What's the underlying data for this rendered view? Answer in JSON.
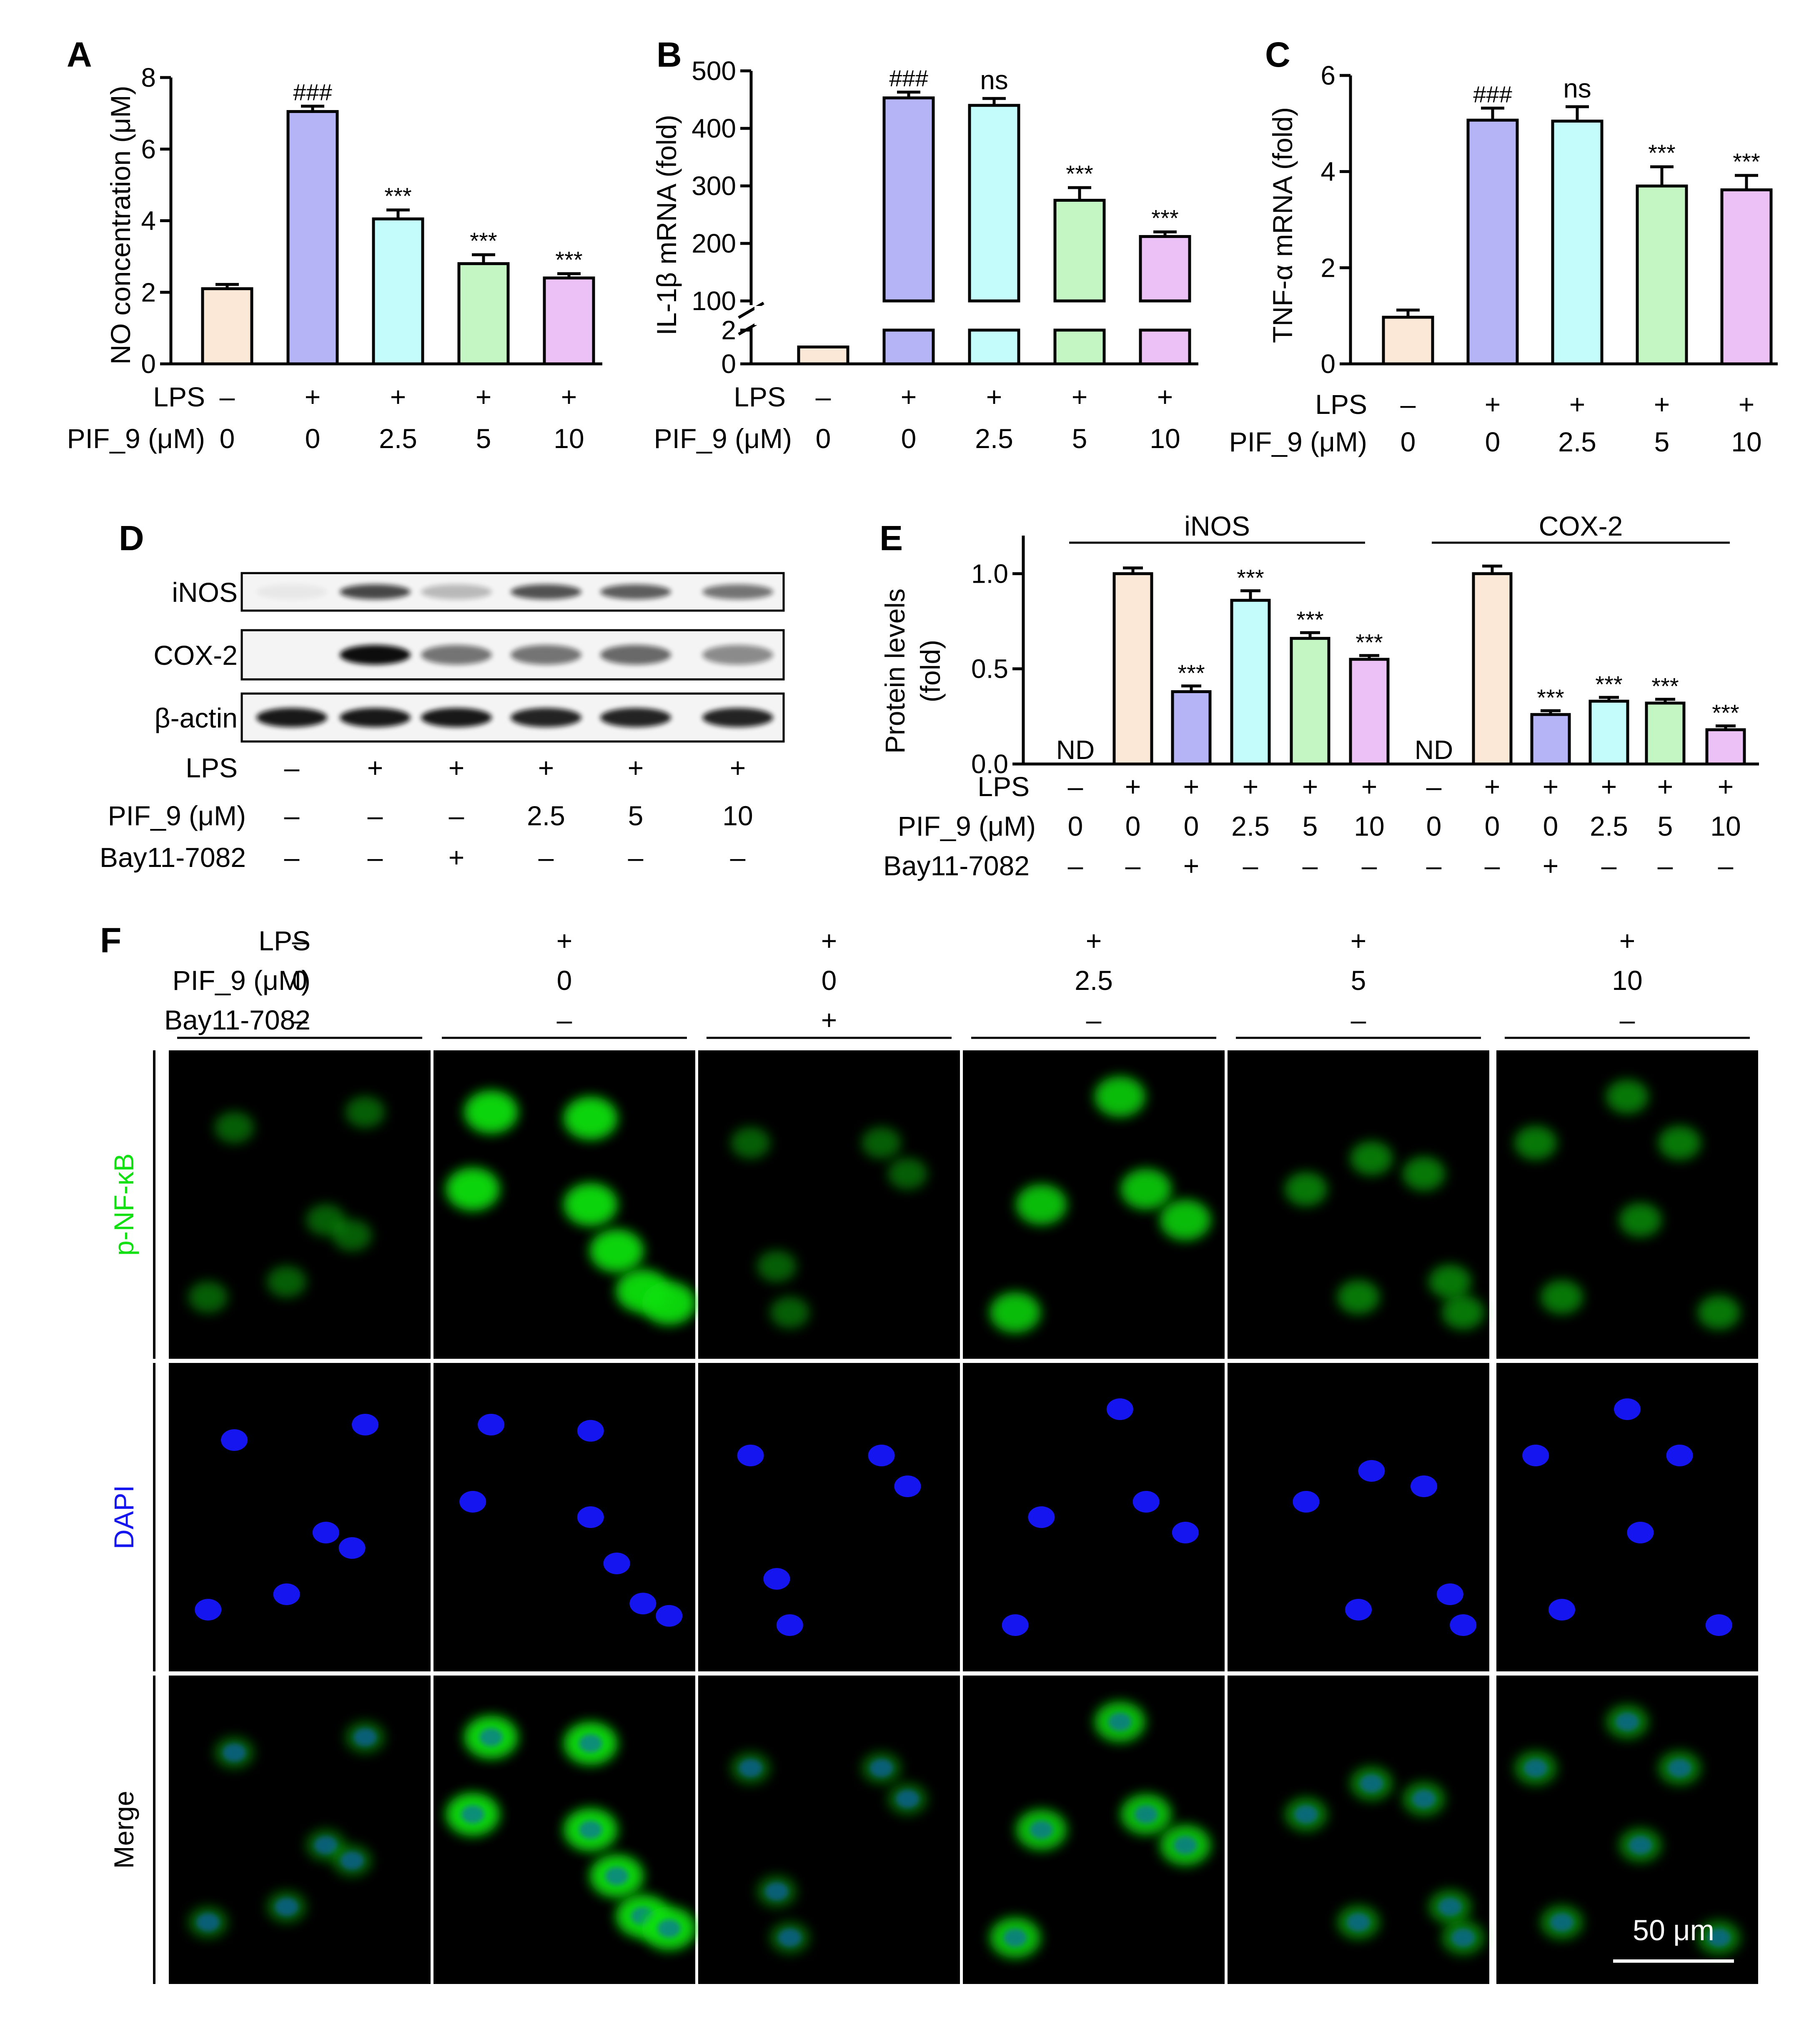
{
  "colors": {
    "c0": "#FCE8D6",
    "c1": "#B4B4F6",
    "c2": "#C4FBFB",
    "c3": "#C3F6C3",
    "c4": "#ECC2F6",
    "green": "#10e010",
    "blue": "#1515f0",
    "micro_bg": "#000000"
  },
  "condition_labels": {
    "lps": "LPS",
    "pif": "PIF_9 (μM)",
    "bay": "Bay11-7082"
  },
  "panels": {
    "A": "A",
    "B": "B",
    "C": "C",
    "D": "D",
    "E": "E",
    "F": "F"
  },
  "chart_data": [
    {
      "id": "A",
      "type": "bar",
      "ylabel": "NO concentration (μM)",
      "ylim": [
        0,
        8
      ],
      "yticks": [
        "0",
        "2",
        "4",
        "6",
        "8"
      ],
      "values": [
        2.1,
        7.05,
        4.05,
        2.8,
        2.4
      ],
      "errors": [
        0.12,
        0.15,
        0.25,
        0.25,
        0.12
      ],
      "annotations": [
        "",
        "###",
        "***",
        "***",
        "***"
      ],
      "lps": [
        "–",
        "+",
        "+",
        "+",
        "+"
      ],
      "pif": [
        "0",
        "0",
        "2.5",
        "5",
        "10"
      ]
    },
    {
      "id": "B",
      "type": "bar",
      "ylabel": "IL-1β mRNA (fold)",
      "axis_break": true,
      "ylim_upper": [
        100,
        500
      ],
      "ylim_lower": [
        0,
        2
      ],
      "yticks": [
        "0",
        "2",
        "100",
        "200",
        "300",
        "400",
        "500"
      ],
      "values": [
        1.0,
        453,
        440,
        275,
        212
      ],
      "errors": [
        0.05,
        10,
        12,
        22,
        8
      ],
      "annotations": [
        "",
        "###",
        "ns",
        "***",
        "***"
      ],
      "lps": [
        "–",
        "+",
        "+",
        "+",
        "+"
      ],
      "pif": [
        "0",
        "0",
        "2.5",
        "5",
        "10"
      ]
    },
    {
      "id": "C",
      "type": "bar",
      "ylabel": "TNF-α mRNA (fold)",
      "ylim": [
        0,
        6
      ],
      "yticks": [
        "0",
        "2",
        "4",
        "6"
      ],
      "values": [
        0.97,
        5.07,
        5.05,
        3.7,
        3.62
      ],
      "errors": [
        0.15,
        0.25,
        0.3,
        0.4,
        0.3
      ],
      "annotations": [
        "",
        "###",
        "ns",
        "***",
        "***"
      ],
      "lps": [
        "–",
        "+",
        "+",
        "+",
        "+"
      ],
      "pif": [
        "0",
        "0",
        "2.5",
        "5",
        "10"
      ]
    },
    {
      "id": "E",
      "type": "bar",
      "ylabel_line1": "Protein levels",
      "ylabel_line2": "(fold)",
      "ylim": [
        0,
        1.2
      ],
      "yticks": [
        "0.0",
        "0.5",
        "1.0"
      ],
      "groups": [
        {
          "name": "iNOS",
          "values": [
            0,
            1.0,
            0.38,
            0.86,
            0.66,
            0.55
          ],
          "errors": [
            0,
            0.03,
            0.03,
            0.05,
            0.03,
            0.02
          ],
          "annotations": [
            "ND",
            "",
            "***",
            "***",
            "***",
            "***"
          ]
        },
        {
          "name": "COX-2",
          "values": [
            0,
            1.0,
            0.26,
            0.33,
            0.32,
            0.18
          ],
          "errors": [
            0,
            0.04,
            0.02,
            0.02,
            0.02,
            0.02
          ],
          "annotations": [
            "ND",
            "",
            "***",
            "***",
            "***",
            "***"
          ]
        }
      ],
      "lps": [
        "–",
        "+",
        "+",
        "+",
        "+",
        "+",
        "–",
        "+",
        "+",
        "+",
        "+",
        "+"
      ],
      "pif": [
        "0",
        "0",
        "0",
        "2.5",
        "5",
        "10",
        "0",
        "0",
        "0",
        "2.5",
        "5",
        "10"
      ],
      "bay": [
        "–",
        "–",
        "+",
        "–",
        "–",
        "–",
        "–",
        "–",
        "+",
        "–",
        "–",
        "–"
      ]
    }
  ],
  "western": {
    "bands": [
      "iNOS",
      "COX-2",
      "β-actin"
    ],
    "intensity": [
      [
        0.05,
        0.75,
        0.25,
        0.7,
        0.65,
        0.55
      ],
      [
        0.0,
        1.0,
        0.55,
        0.55,
        0.6,
        0.45
      ],
      [
        0.95,
        0.95,
        0.95,
        0.9,
        0.9,
        0.9
      ]
    ],
    "lps": [
      "–",
      "+",
      "+",
      "+",
      "+",
      "+"
    ],
    "pif": [
      "–",
      "–",
      "–",
      "2.5",
      "5",
      "10"
    ],
    "bay": [
      "–",
      "–",
      "+",
      "–",
      "–",
      "–"
    ]
  },
  "micro": {
    "lps": [
      "–",
      "+",
      "+",
      "+",
      "+",
      "+"
    ],
    "pif": [
      "0",
      "0",
      "0",
      "2.5",
      "5",
      "10"
    ],
    "bay": [
      "–",
      "–",
      "+",
      "–",
      "–",
      "–"
    ],
    "rows": [
      "p-NF-κB",
      "DAPI",
      "Merge"
    ],
    "green_intensity": [
      0.3,
      1.0,
      0.3,
      0.85,
      0.45,
      0.45
    ],
    "scale_bar": "50 μm"
  }
}
